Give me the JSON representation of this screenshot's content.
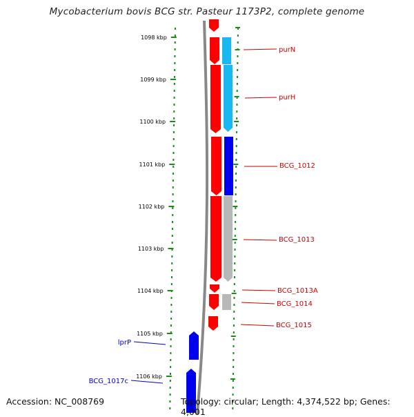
{
  "title": "Mycobacterium bovis BCG str. Pasteur 1173P2, complete genome",
  "footer": {
    "accession": "Accession: NC_008769",
    "info": "Topology: circular; Length: 4,374,522 bp; Genes: 4,001"
  },
  "colors": {
    "forward_red": "#ff0000",
    "reverse_blue": "#0000ee",
    "cyan": "#1ab8f0",
    "grey": "#b8b8b8",
    "backbone": "#888888",
    "dots": "#1a8a1a",
    "label_red": "#cc0000",
    "label_blue": "#0000cc"
  },
  "ticks": [
    {
      "label": "1098 kbp"
    },
    {
      "label": "1099 kbp"
    },
    {
      "label": "1100 kbp"
    },
    {
      "label": "1101 kbp"
    },
    {
      "label": "1102 kbp"
    },
    {
      "label": "1103 kbp"
    },
    {
      "label": "1104 kbp"
    },
    {
      "label": "1105 kbp"
    },
    {
      "label": "1106 kbp"
    }
  ],
  "gene_labels": [
    {
      "name": "purN",
      "color": "red"
    },
    {
      "name": "purH",
      "color": "red"
    },
    {
      "name": "BCG_1012",
      "color": "red"
    },
    {
      "name": "BCG_1013",
      "color": "red"
    },
    {
      "name": "BCG_1013A",
      "color": "red"
    },
    {
      "name": "BCG_1014",
      "color": "red"
    },
    {
      "name": "BCG_1015",
      "color": "red"
    },
    {
      "name": "lprP",
      "color": "blue"
    },
    {
      "name": "BCG_1017c",
      "color": "blue"
    }
  ]
}
